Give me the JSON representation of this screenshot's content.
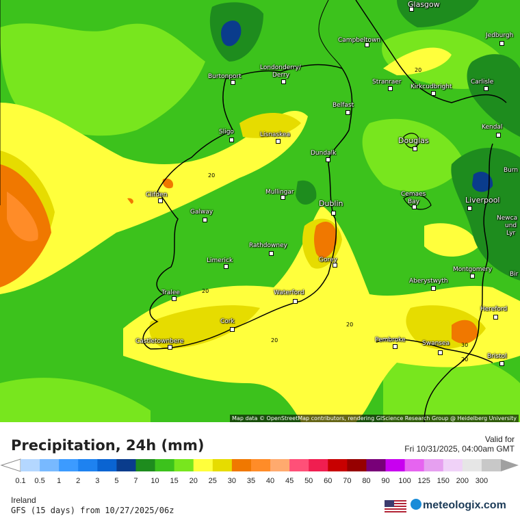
{
  "map": {
    "cities": [
      {
        "name": "Glasgow",
        "big": true
      },
      {
        "name": "Jedburgh",
        "big": false
      },
      {
        "name": "Campbeltown",
        "big": false
      },
      {
        "name": "Burtonport",
        "big": false
      },
      {
        "name": "Londonderry/",
        "big": false
      },
      {
        "name": "Derry",
        "big": false
      },
      {
        "name": "Stranraer",
        "big": false
      },
      {
        "name": "Kirkcudbright",
        "big": false
      },
      {
        "name": "Carlisle",
        "big": false
      },
      {
        "name": "Belfast",
        "big": false
      },
      {
        "name": "Kendal",
        "big": false
      },
      {
        "name": "Sligo",
        "big": false
      },
      {
        "name": "Lisnaskea",
        "big": false
      },
      {
        "name": "Douglas",
        "big": true
      },
      {
        "name": "Dundalk",
        "big": false
      },
      {
        "name": "Clifden",
        "big": false
      },
      {
        "name": "Mullingar",
        "big": false
      },
      {
        "name": "Dublin",
        "big": true
      },
      {
        "name": "Cemaes",
        "big": false
      },
      {
        "name": "Bay",
        "big": false
      },
      {
        "name": "Liverpool",
        "big": true
      },
      {
        "name": "Galway",
        "big": false
      },
      {
        "name": "Rathdowney",
        "big": false
      },
      {
        "name": "Limerick",
        "big": false
      },
      {
        "name": "Gorey",
        "big": false
      },
      {
        "name": "Montgomery",
        "big": false
      },
      {
        "name": "Aberystwyth",
        "big": false
      },
      {
        "name": "Tralee",
        "big": false
      },
      {
        "name": "Waterford",
        "big": false
      },
      {
        "name": "Hereford",
        "big": false
      },
      {
        "name": "Cork",
        "big": false
      },
      {
        "name": "Castletownbere",
        "big": false
      },
      {
        "name": "Pembroke",
        "big": false
      },
      {
        "name": "Swansea",
        "big": false
      },
      {
        "name": "Bristol",
        "big": false
      },
      {
        "name": "Burn",
        "big": false
      },
      {
        "name": "Newca",
        "big": false
      },
      {
        "name": "und",
        "big": false
      },
      {
        "name": "Lyr",
        "big": false
      },
      {
        "name": "Bir",
        "big": false
      }
    ],
    "contour_labels": [
      "20",
      "20",
      "20",
      "20",
      "20",
      "30",
      "20"
    ],
    "attribution": "Map data © OpenStreetMap contributors, rendering GIScience Research Group @ Heidelberg University"
  },
  "legend": {
    "title": "Precipitation, 24h (mm)",
    "valid_label": "Valid for",
    "valid_time": "Fri 10/31/2025, 04:00am GMT",
    "region": "Ireland",
    "model": "GFS (15 days) from 10/27/2025/06z",
    "brand": "meteologix.com",
    "ticks": [
      "0.1",
      "0.5",
      "1",
      "2",
      "3",
      "5",
      "7",
      "10",
      "15",
      "20",
      "25",
      "30",
      "35",
      "40",
      "45",
      "50",
      "60",
      "70",
      "80",
      "90",
      "100",
      "125",
      "150",
      "200",
      "300"
    ],
    "colors": [
      "#b4d7ff",
      "#78b9ff",
      "#3c9bff",
      "#1e82f0",
      "#0a64d2",
      "#0a3c8c",
      "#1e8c1e",
      "#3cc21c",
      "#78e61e",
      "#ffff3c",
      "#e6dc00",
      "#f07800",
      "#ff8c28",
      "#ffaa6e",
      "#ff5078",
      "#f01e50",
      "#c80000",
      "#960000",
      "#780078",
      "#c800f0",
      "#e664f0",
      "#e6a0f0",
      "#f0d2f8",
      "#e6e6e6",
      "#c8c8c8"
    ]
  }
}
